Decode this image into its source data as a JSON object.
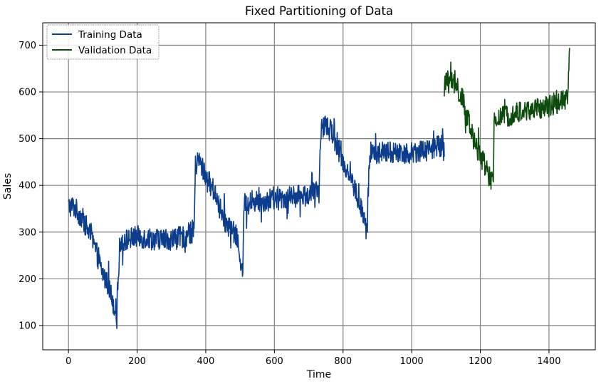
{
  "chart_data": {
    "type": "line",
    "title": "Fixed Partitioning of Data",
    "xlabel": "Time",
    "ylabel": "Sales",
    "xlim": [
      -75,
      1535
    ],
    "ylim": [
      48,
      748
    ],
    "xticks": [
      0,
      200,
      400,
      600,
      800,
      1000,
      1200,
      1400
    ],
    "yticks": [
      100,
      200,
      300,
      400,
      500,
      600,
      700
    ],
    "grid": true,
    "legend": "top-left",
    "series": [
      {
        "name": "Training Data",
        "color": "#0b3d8c",
        "x_range": [
          0,
          1095
        ],
        "anchors": [
          [
            0,
            355
          ],
          [
            15,
            355
          ],
          [
            40,
            330
          ],
          [
            60,
            300
          ],
          [
            80,
            260
          ],
          [
            100,
            210
          ],
          [
            115,
            190
          ],
          [
            130,
            150
          ],
          [
            140,
            130
          ],
          [
            145,
            200
          ],
          [
            150,
            280
          ],
          [
            200,
            290
          ],
          [
            250,
            285
          ],
          [
            300,
            285
          ],
          [
            340,
            290
          ],
          [
            360,
            300
          ],
          [
            366,
            310
          ],
          [
            370,
            440
          ],
          [
            380,
            455
          ],
          [
            400,
            420
          ],
          [
            430,
            380
          ],
          [
            450,
            330
          ],
          [
            470,
            310
          ],
          [
            490,
            290
          ],
          [
            505,
            230
          ],
          [
            508,
            200
          ],
          [
            510,
            300
          ],
          [
            512,
            360
          ],
          [
            540,
            365
          ],
          [
            600,
            370
          ],
          [
            650,
            375
          ],
          [
            700,
            380
          ],
          [
            728,
            385
          ],
          [
            730,
            380
          ],
          [
            735,
            520
          ],
          [
            750,
            530
          ],
          [
            770,
            510
          ],
          [
            800,
            450
          ],
          [
            820,
            420
          ],
          [
            840,
            380
          ],
          [
            860,
            330
          ],
          [
            870,
            300
          ],
          [
            875,
            420
          ],
          [
            878,
            470
          ],
          [
            900,
            470
          ],
          [
            950,
            470
          ],
          [
            1000,
            470
          ],
          [
            1050,
            480
          ],
          [
            1095,
            485
          ]
        ],
        "noise": 24
      },
      {
        "name": "Validation Data",
        "color": "#0d4a0d",
        "x_range": [
          1095,
          1460
        ],
        "anchors": [
          [
            1095,
            610
          ],
          [
            1110,
            630
          ],
          [
            1130,
            610
          ],
          [
            1150,
            580
          ],
          [
            1170,
            520
          ],
          [
            1190,
            480
          ],
          [
            1210,
            450
          ],
          [
            1225,
            420
          ],
          [
            1238,
            400
          ],
          [
            1240,
            540
          ],
          [
            1260,
            545
          ],
          [
            1300,
            555
          ],
          [
            1350,
            560
          ],
          [
            1400,
            570
          ],
          [
            1440,
            580
          ],
          [
            1455,
            590
          ],
          [
            1460,
            680
          ]
        ],
        "noise": 24
      }
    ]
  }
}
